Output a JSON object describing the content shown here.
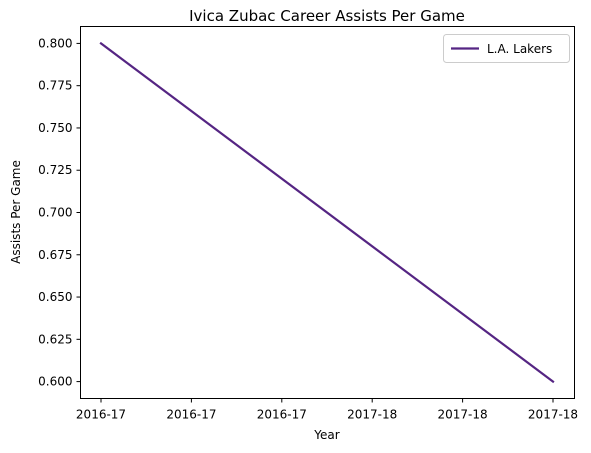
{
  "chart_data": {
    "type": "line",
    "title": "Ivica Zubac Career Assists Per Game",
    "xlabel": "Year",
    "ylabel": "Assists Per Game",
    "x_tick_labels": [
      "2016-17",
      "2016-17",
      "2016-17",
      "2017-18",
      "2017-18",
      "2017-18"
    ],
    "y_ticks": [
      0.6,
      0.625,
      0.65,
      0.675,
      0.7,
      0.725,
      0.75,
      0.775,
      0.8
    ],
    "y_tick_labels": [
      "0.600",
      "0.625",
      "0.650",
      "0.675",
      "0.700",
      "0.725",
      "0.750",
      "0.775",
      "0.800"
    ],
    "ylim": [
      0.59,
      0.81
    ],
    "categories": [
      "2016-17",
      "2017-18"
    ],
    "series": [
      {
        "name": "L.A. Lakers",
        "color": "#552583",
        "values": [
          0.8,
          0.6
        ]
      }
    ],
    "grid": false,
    "legend": "top-right"
  }
}
